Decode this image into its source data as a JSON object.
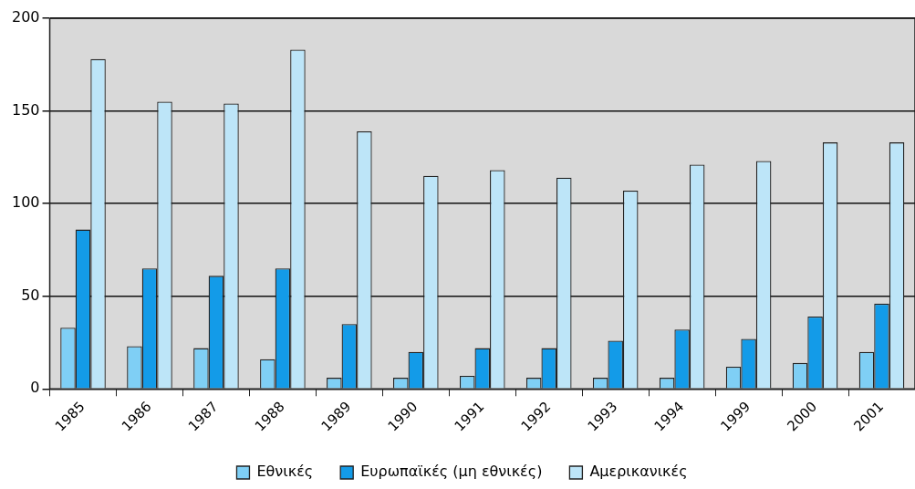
{
  "chart_data": {
    "type": "bar",
    "categories": [
      "1985",
      "1986",
      "1987",
      "1988",
      "1989",
      "1990",
      "1991",
      "1992",
      "1993",
      "1994",
      "1999",
      "2000",
      "2001"
    ],
    "series": [
      {
        "name": "Εθνικές",
        "color": "#7fcff5",
        "values": [
          33,
          23,
          22,
          16,
          6,
          6,
          7,
          6,
          6,
          6,
          12,
          14,
          20
        ]
      },
      {
        "name": "Ευρωπαϊκές (μη εθνικές)",
        "color": "#139be8",
        "values": [
          86,
          65,
          61,
          65,
          35,
          20,
          22,
          22,
          26,
          32,
          27,
          39,
          46
        ]
      },
      {
        "name": "Αμερικανικές",
        "color": "#bde5f8",
        "values": [
          178,
          155,
          154,
          183,
          139,
          115,
          118,
          114,
          107,
          121,
          123,
          133,
          133
        ]
      }
    ],
    "ylim": [
      0,
      200
    ],
    "yticks": [
      0,
      50,
      100,
      150,
      200
    ],
    "grid": "y",
    "legend": "bottom"
  }
}
